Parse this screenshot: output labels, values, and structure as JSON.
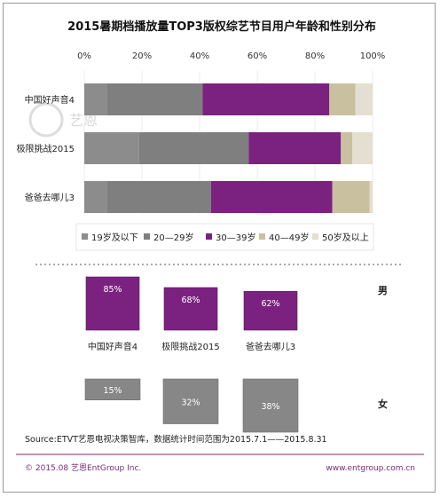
{
  "colors": {
    "age_19_below": "#8c8c8c",
    "age_20_29": "#7f7f7f",
    "age_30_39": "#7b2280",
    "age_40_49": "#c9c0a0",
    "age_50_up": "#e4dfd0",
    "male": "#7b2280",
    "female": "#878787",
    "footer": "#7a2a7a"
  },
  "chart_data": [
    {
      "type": "bar",
      "orientation": "horizontal",
      "stacked": true,
      "title": "2015暑期档播放量TOP3版权综艺节目用户年龄和性别分布",
      "x_ticks": [
        "0%",
        "20%",
        "40%",
        "60%",
        "80%",
        "100%"
      ],
      "xlim": [
        0,
        100
      ],
      "categories": [
        "中国好声音4",
        "极限挑战2015",
        "爸爸去哪儿3"
      ],
      "series": [
        {
          "name": "19岁及以下",
          "values": [
            8,
            19,
            8
          ]
        },
        {
          "name": "20—29岁",
          "values": [
            33,
            38,
            36
          ]
        },
        {
          "name": "30—39岁",
          "values": [
            44,
            32,
            42
          ]
        },
        {
          "name": "40—49岁",
          "values": [
            9,
            4,
            13
          ]
        },
        {
          "name": "50岁及以上",
          "values": [
            6,
            7,
            1
          ]
        }
      ],
      "legend": [
        "19岁及以下",
        "20—29岁",
        "30—39岁",
        "40—49岁",
        "50岁及以上"
      ],
      "legend_position": "bottom"
    },
    {
      "type": "bar",
      "categories": [
        "中国好声音4",
        "极限挑战2015",
        "爸爸去哪儿3"
      ],
      "series": [
        {
          "name": "男",
          "values": [
            85,
            68,
            62
          ],
          "labels": [
            "85%",
            "68%",
            "62%"
          ]
        },
        {
          "name": "女",
          "values": [
            15,
            32,
            38
          ],
          "labels": [
            "15%",
            "32%",
            "38%"
          ]
        }
      ]
    }
  ],
  "gender_labels": {
    "male": "男",
    "female": "女"
  },
  "watermark": "艺恩",
  "source": "Source:ETVT艺恩电视决策智库，数据统计时间范围为2015.7.1——2015.8.31",
  "footer": {
    "left": "© 2015.08 艺恩EntGroup Inc.",
    "right": "www.entgroup.com.cn"
  }
}
